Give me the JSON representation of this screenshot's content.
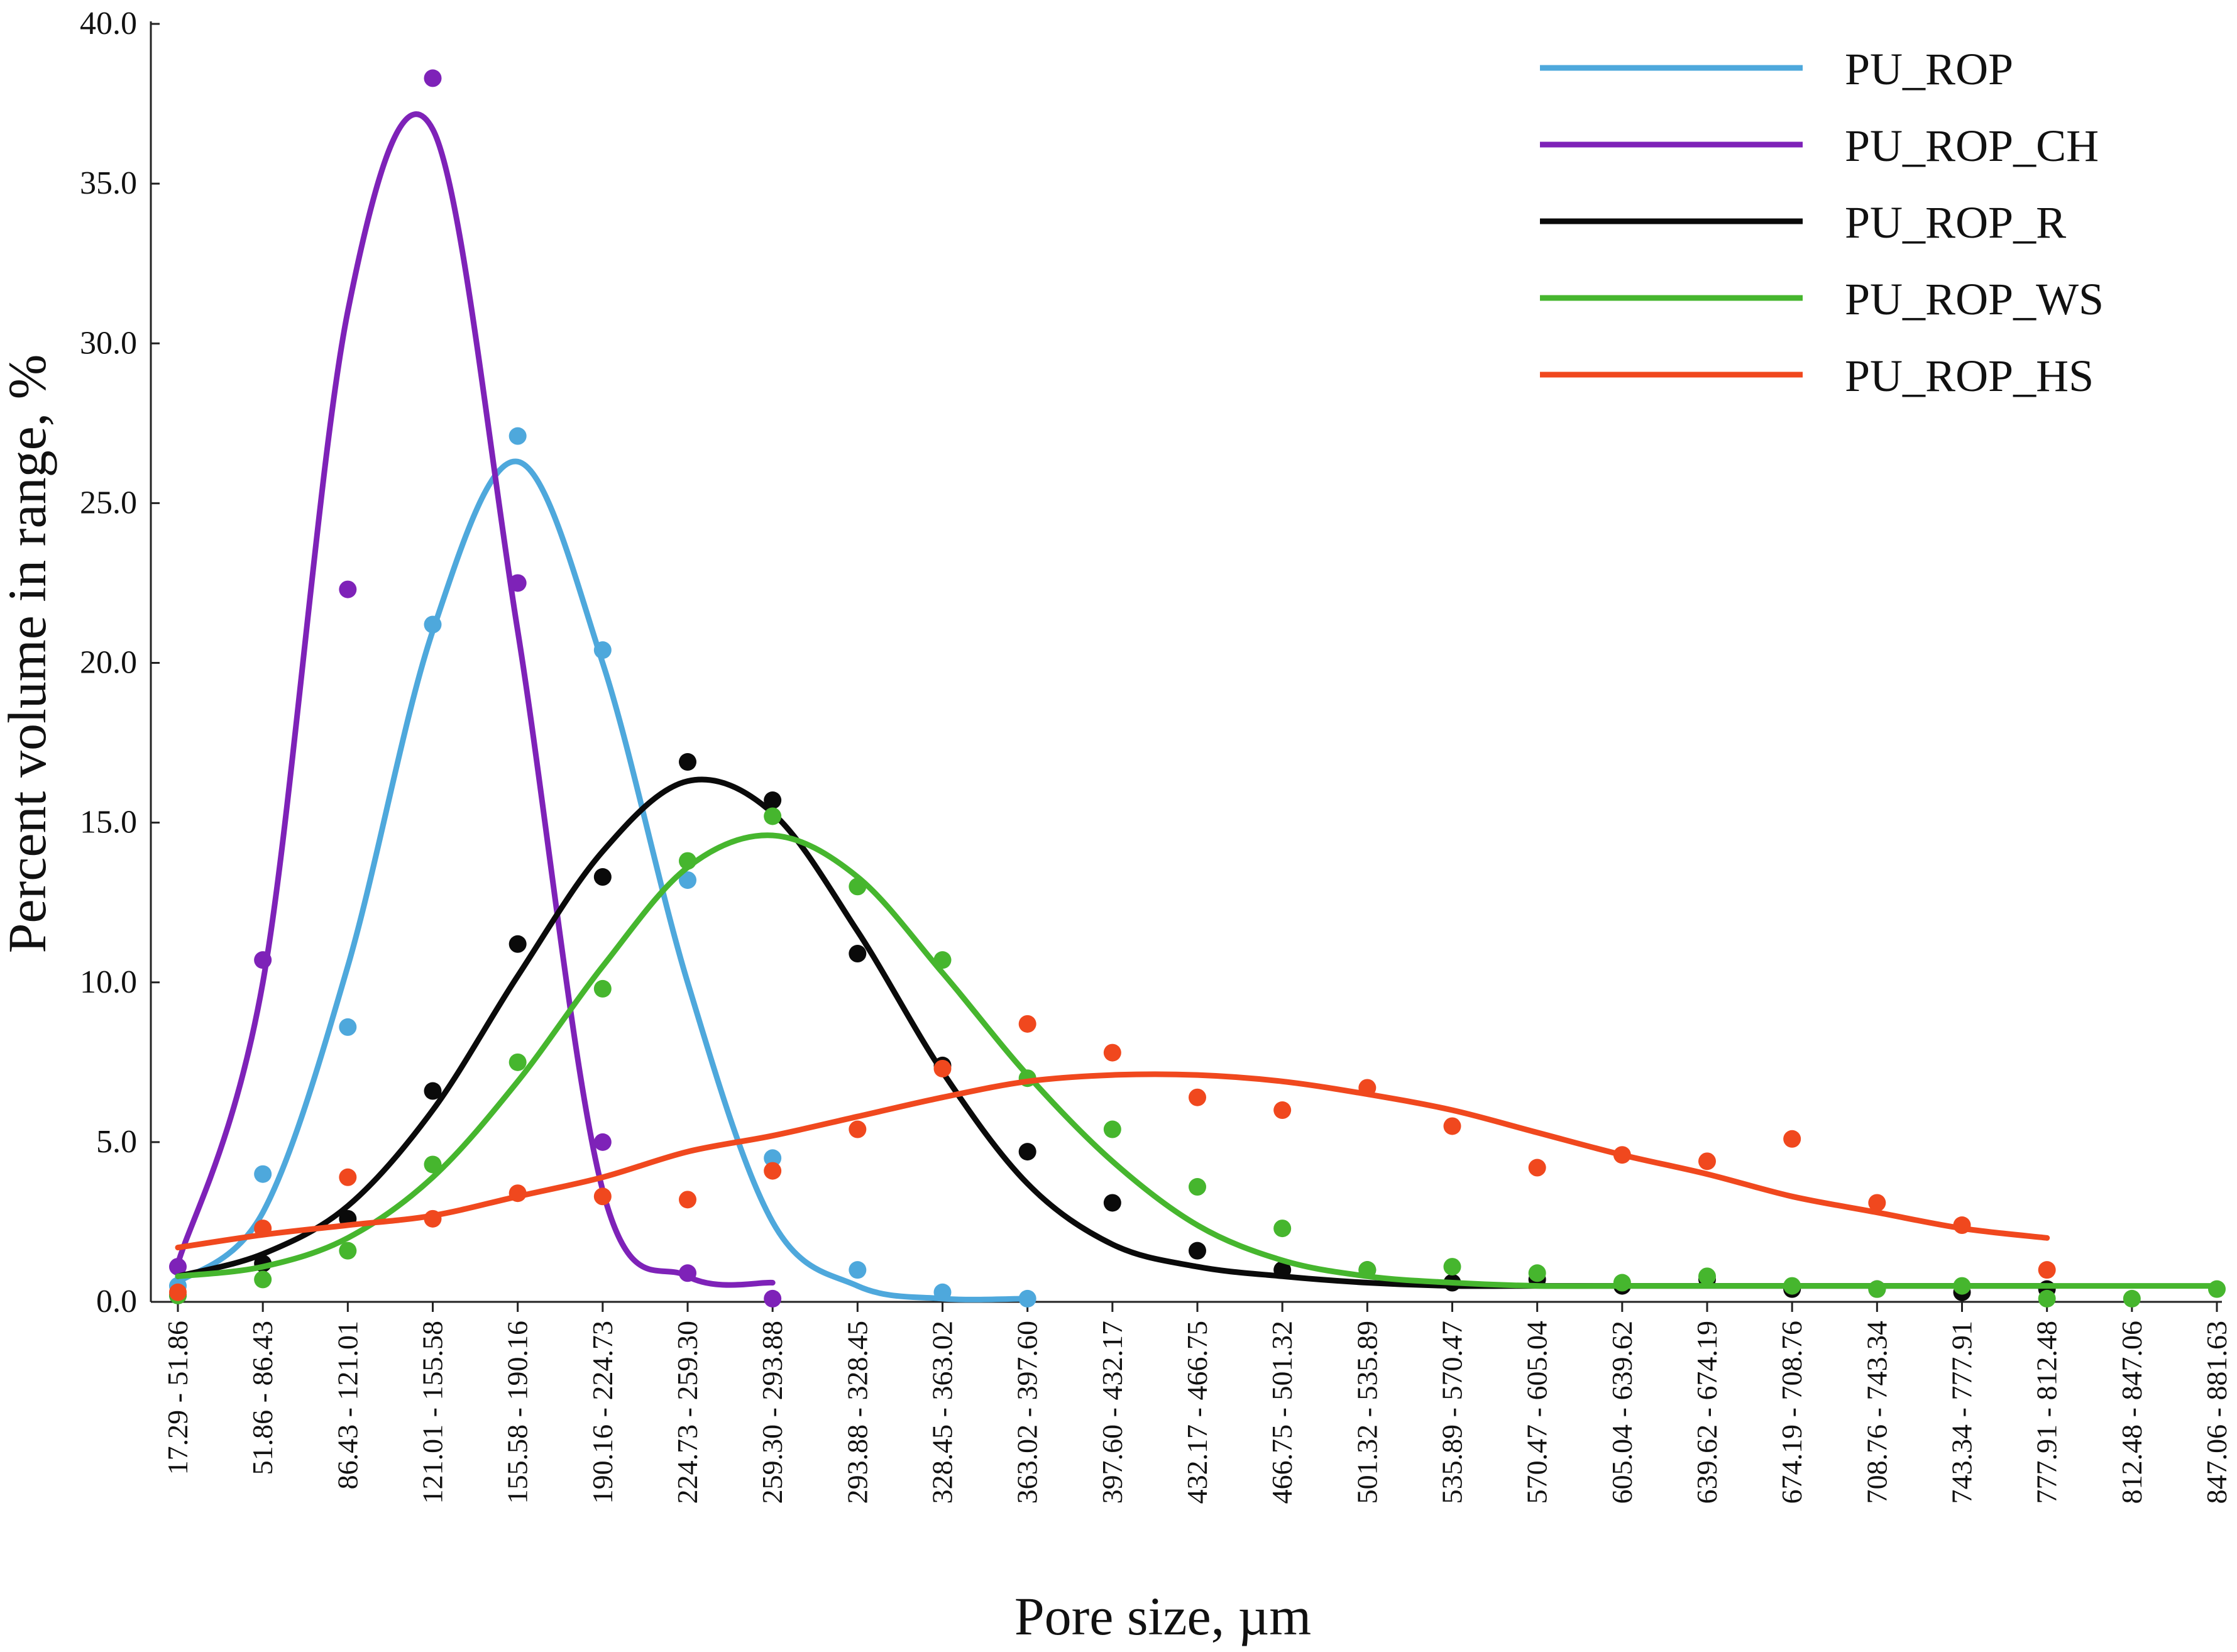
{
  "chart_data": {
    "type": "scatter",
    "title": "",
    "xlabel": "Pore size, µm",
    "ylabel": "Percent volume in range, %",
    "ylim": [
      0,
      40
    ],
    "yticks": [
      "0.0",
      "5.0",
      "10.0",
      "15.0",
      "20.0",
      "25.0",
      "30.0",
      "35.0",
      "40.0"
    ],
    "grid": false,
    "legend_position": "top-right",
    "categories": [
      "17.29 - 51.86",
      "51.86 - 86.43",
      "86.43 - 121.01",
      "121.01 - 155.58",
      "155.58 - 190.16",
      "190.16 - 224.73",
      "224.73 - 259.30",
      "259.30 - 293.88",
      "293.88 - 328.45",
      "328.45 - 363.02",
      "363.02 - 397.60",
      "397.60 - 432.17",
      "432.17 - 466.75",
      "466.75 - 501.32",
      "501.32 - 535.89",
      "535.89 - 570.47",
      "570.47 - 605.04",
      "605.04 - 639.62",
      "639.62 - 674.19",
      "674.19 - 708.76",
      "708.76 - 743.34",
      "743.34 - 777.91",
      "777.91 - 812.48",
      "812.48 - 847.06",
      "847.06 - 881.63"
    ],
    "series": [
      {
        "name": "PU_ROP",
        "color": "#4ea8dc",
        "points": [
          0.5,
          4.0,
          8.6,
          21.2,
          27.1,
          20.4,
          13.2,
          4.5,
          1.0,
          0.3,
          0.1
        ],
        "fit": [
          0.6,
          2.8,
          10.5,
          21.0,
          26.3,
          20.0,
          10.0,
          2.5,
          0.5,
          0.1,
          0.1
        ]
      },
      {
        "name": "PU_ROP_CH",
        "color": "#7e22b8",
        "points": [
          1.1,
          10.7,
          22.3,
          38.3,
          22.5,
          5.0,
          0.9,
          0.1
        ],
        "fit": [
          1.2,
          10.0,
          31.0,
          36.7,
          21.0,
          3.5,
          0.8,
          0.6
        ]
      },
      {
        "name": "PU_ROP_R",
        "color": "#0a0a0a",
        "points": [
          0.2,
          1.2,
          2.6,
          6.6,
          11.2,
          13.3,
          16.9,
          15.7,
          10.9,
          7.4,
          4.7,
          3.1,
          1.6,
          1.0,
          1.0,
          0.6,
          0.7,
          0.5,
          0.7,
          0.4,
          0.4,
          0.3,
          0.4
        ],
        "fit": [
          0.8,
          1.5,
          3.0,
          6.0,
          10.2,
          14.1,
          16.3,
          15.3,
          11.6,
          7.2,
          3.7,
          1.8,
          1.1,
          0.8,
          0.6,
          0.5,
          0.5,
          0.5,
          0.5,
          0.5,
          0.5,
          0.5,
          0.5
        ]
      },
      {
        "name": "PU_ROP_WS",
        "color": "#46b62e",
        "points": [
          0.2,
          0.7,
          1.6,
          4.3,
          7.5,
          9.8,
          13.8,
          15.2,
          13.0,
          10.7,
          7.0,
          5.4,
          3.6,
          2.3,
          1.0,
          1.1,
          0.9,
          0.6,
          0.8,
          0.5,
          0.4,
          0.5,
          0.1,
          0.1,
          0.4
        ],
        "fit": [
          0.8,
          1.1,
          2.0,
          3.9,
          6.9,
          10.5,
          13.6,
          14.6,
          13.3,
          10.3,
          7.1,
          4.4,
          2.4,
          1.3,
          0.8,
          0.6,
          0.5,
          0.5,
          0.5,
          0.5,
          0.5,
          0.5,
          0.5,
          0.5,
          0.5
        ]
      },
      {
        "name": "PU_ROP_HS",
        "color": "#f0481e",
        "points": [
          0.3,
          2.3,
          3.9,
          2.6,
          3.4,
          3.3,
          3.2,
          4.1,
          5.4,
          7.3,
          8.7,
          7.8,
          6.4,
          6.0,
          6.7,
          5.5,
          4.2,
          4.6,
          4.4,
          5.1,
          3.1,
          2.4,
          1.0
        ],
        "fit": [
          1.7,
          2.1,
          2.4,
          2.7,
          3.3,
          3.9,
          4.7,
          5.2,
          5.8,
          6.4,
          6.9,
          7.1,
          7.1,
          6.9,
          6.5,
          6.0,
          5.3,
          4.6,
          4.0,
          3.3,
          2.8,
          2.3,
          2.0
        ]
      }
    ]
  }
}
